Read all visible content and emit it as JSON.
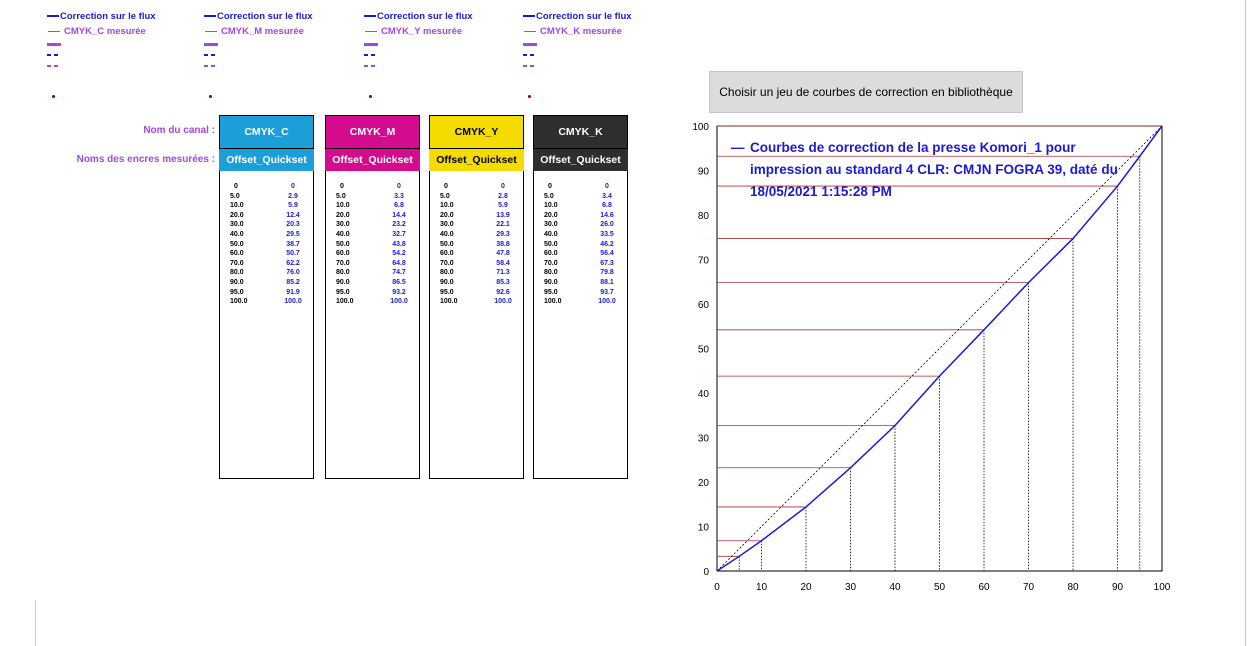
{
  "legend": {
    "flux_label": "Correction sur le flux",
    "groups": [
      {
        "measured_label": "CMYK_C mesurée"
      },
      {
        "measured_label": "CMYK_M mesurée"
      },
      {
        "measured_label": "CMYK_Y mesurée"
      },
      {
        "measured_label": "CMYK_K mesurée"
      }
    ],
    "colors": {
      "flux": "#1a1ad6",
      "measured": "#a248e6",
      "dot": "#8b0000"
    }
  },
  "labels": {
    "channel_name": "Nom du canal :",
    "ink_names": "Noms des encres mesurées :"
  },
  "channels": [
    {
      "name": "CMYK_C",
      "ink": "Offset_Quickset",
      "head_color": "#1a9fd9",
      "ink_color": "#1a9fd9",
      "values": [
        [
          "0",
          "0"
        ],
        [
          "5.0",
          "2.9"
        ],
        [
          "10.0",
          "5.9"
        ],
        [
          "20.0",
          "12.4"
        ],
        [
          "30.0",
          "20.3"
        ],
        [
          "40.0",
          "29.5"
        ],
        [
          "50.0",
          "38.7"
        ],
        [
          "60.0",
          "50.7"
        ],
        [
          "70.0",
          "62.2"
        ],
        [
          "80.0",
          "76.0"
        ],
        [
          "90.0",
          "85.2"
        ],
        [
          "95.0",
          "91.9"
        ],
        [
          "100.0",
          "100.0"
        ]
      ]
    },
    {
      "name": "CMYK_M",
      "ink": "Offset_Quickset",
      "head_color": "#d40b8c",
      "ink_color": "#d40b8c",
      "values": [
        [
          "0",
          "0"
        ],
        [
          "5.0",
          "3.3"
        ],
        [
          "10.0",
          "6.8"
        ],
        [
          "20.0",
          "14.4"
        ],
        [
          "30.0",
          "23.2"
        ],
        [
          "40.0",
          "32.7"
        ],
        [
          "50.0",
          "43.8"
        ],
        [
          "60.0",
          "54.2"
        ],
        [
          "70.0",
          "64.8"
        ],
        [
          "80.0",
          "74.7"
        ],
        [
          "90.0",
          "86.5"
        ],
        [
          "95.0",
          "93.2"
        ],
        [
          "100.0",
          "100.0"
        ]
      ]
    },
    {
      "name": "CMYK_Y",
      "ink": "Offset_Quickset",
      "head_color": "#f5dc00",
      "ink_color": "#f5dc00",
      "values": [
        [
          "0",
          "0"
        ],
        [
          "5.0",
          "2.8"
        ],
        [
          "10.0",
          "5.9"
        ],
        [
          "20.0",
          "13.9"
        ],
        [
          "30.0",
          "22.1"
        ],
        [
          "40.0",
          "29.3"
        ],
        [
          "50.0",
          "38.8"
        ],
        [
          "60.0",
          "47.8"
        ],
        [
          "70.0",
          "58.4"
        ],
        [
          "80.0",
          "71.3"
        ],
        [
          "90.0",
          "85.3"
        ],
        [
          "95.0",
          "92.6"
        ],
        [
          "100.0",
          "100.0"
        ]
      ]
    },
    {
      "name": "CMYK_K",
      "ink": "Offset_Quickset",
      "head_color": "#2e2e2e",
      "ink_color": "#2e2e2e",
      "values": [
        [
          "0",
          "0"
        ],
        [
          "5.0",
          "3.4"
        ],
        [
          "10.0",
          "6.8"
        ],
        [
          "20.0",
          "14.6"
        ],
        [
          "30.0",
          "26.0"
        ],
        [
          "40.0",
          "33.5"
        ],
        [
          "50.0",
          "46.2"
        ],
        [
          "60.0",
          "56.4"
        ],
        [
          "70.0",
          "67.3"
        ],
        [
          "80.0",
          "79.8"
        ],
        [
          "90.0",
          "88.1"
        ],
        [
          "95.0",
          "93.7"
        ],
        [
          "100.0",
          "100.0"
        ]
      ]
    }
  ],
  "library_button": "Choisir un jeu de courbes de correction en bibliothèque",
  "chart_data": {
    "type": "line",
    "title": "Courbes de correction de la presse Komori_1 pour impression au standard 4 CLR: CMJN FOGRA 39, daté du 18/05/2021 1:15:28 PM",
    "title_lines": [
      "Courbes de correction de la presse Komori_1 pour",
      "impression au standard 4 CLR: CMJN FOGRA 39, daté du",
      "18/05/2021 1:15:28 PM"
    ],
    "legend_marker": "—",
    "xlim": [
      0,
      100
    ],
    "ylim": [
      0,
      100
    ],
    "x_ticks": [
      0,
      10,
      20,
      30,
      40,
      50,
      60,
      70,
      80,
      90,
      100
    ],
    "y_ticks": [
      0,
      10,
      20,
      30,
      40,
      50,
      60,
      70,
      80,
      90,
      100
    ],
    "series": [
      {
        "x": [
          0,
          5,
          10,
          20,
          30,
          40,
          50,
          60,
          70,
          80,
          90,
          95,
          100
        ],
        "y": [
          0,
          3.3,
          6.8,
          14.4,
          23.2,
          32.7,
          43.8,
          54.2,
          64.8,
          74.7,
          86.5,
          93.2,
          100
        ],
        "color": "#1a1ad6"
      }
    ],
    "reference_diagonal": true,
    "drop_lines": {
      "color_horizontal": "#b03030",
      "color_vertical": "#000000"
    }
  }
}
